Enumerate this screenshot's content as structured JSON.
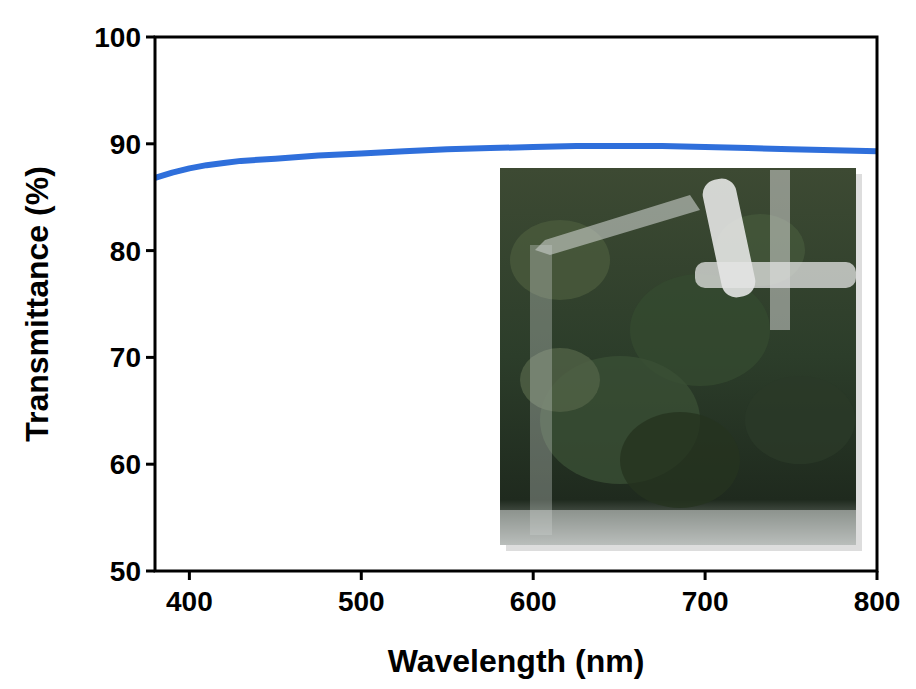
{
  "chart_data": {
    "type": "line",
    "x_label": "Wavelength (nm)",
    "y_label": "Transmittance (%)",
    "x": [
      380,
      390,
      400,
      410,
      420,
      430,
      440,
      450,
      475,
      500,
      525,
      550,
      575,
      600,
      625,
      650,
      675,
      700,
      725,
      750,
      775,
      800
    ],
    "values": [
      86.8,
      87.3,
      87.7,
      88.0,
      88.2,
      88.4,
      88.5,
      88.6,
      88.9,
      89.1,
      89.3,
      89.5,
      89.6,
      89.7,
      89.8,
      89.8,
      89.8,
      89.7,
      89.6,
      89.5,
      89.4,
      89.3
    ],
    "color": "#2f6fdb",
    "xlim": [
      380,
      800
    ],
    "xticks": [
      400,
      500,
      600,
      700,
      800
    ],
    "ylim": [
      50,
      100
    ],
    "yticks": [
      50,
      60,
      70,
      80,
      90,
      100
    ],
    "grid": false
  }
}
